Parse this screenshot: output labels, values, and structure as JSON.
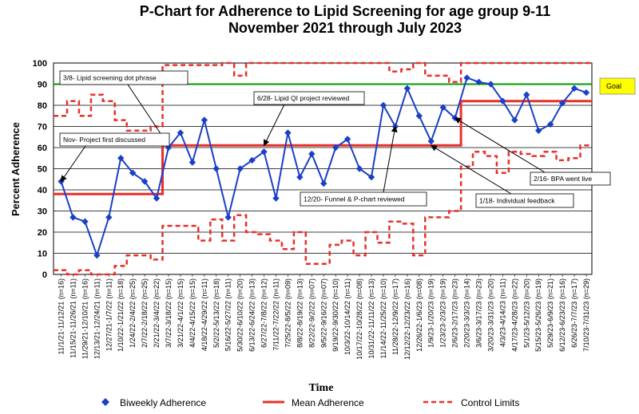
{
  "chart_data": {
    "type": "line",
    "title": "P-Chart for Adherence to Lipid Screening for age group 9-11",
    "subtitle": "November 2021 through July 2023",
    "xlabel": "Time",
    "ylabel": "Percent Adherence",
    "ylim": [
      0,
      100
    ],
    "yticks": [
      0,
      10,
      20,
      30,
      40,
      50,
      60,
      70,
      80,
      90,
      100
    ],
    "categories": [
      "11/1/21-11/12/21 (n=16)",
      "11/15/21-11/26/21 (n=11)",
      "11/29/21-12/10/21 (n=16)",
      "12/13/21-12/24/21 (n=11)",
      "12/27/21-1/7/22 (n=11)",
      "1/10/22-1/21/22 (n=18)",
      "1/24/22-2/4/22 (n=25)",
      "2/7/22-2/18/22 (n=25)",
      "2/21/22-3/4/22 (n=22)",
      "3/7/22-3/18/22 (n=15)",
      "3/21/22-4/1/22 (n=15)",
      "4/4/22-4/15/22 (n=15)",
      "4/18/22-4/29/22 (n=11)",
      "5/2/22-5/13/22 (n=18)",
      "5/16/22-5/27/22 (n=11)",
      "5/30/22-6/10/22 (n=20)",
      "6/13/22-6/24/22 (n=13)",
      "6/27/22-7/8/22 (n=12)",
      "7/11/22-7/22/22 (n=11)",
      "7/25/22-8/5/22 (n=09)",
      "8/8/22-8/19/22 (n=13)",
      "8/22/22-9/2/22 (n=07)",
      "9/5/22-9/16/22 (n=07)",
      "9/19/22-9/30/22 (n=10)",
      "10/3/22-10/14/22 (n=11)",
      "10/17/22-10/28/22 (n=08)",
      "10/31/22-11/11/22 (n=13)",
      "11/14/22-11/25/22 (n=10)",
      "11/28/22-12/9/22 (n=17)",
      "12/12/22-12/23/22 (n=16)",
      "12/26/22-1/6/23 (n=08)",
      "1/9/23-1/20/23 (n=19)",
      "1/23/23-2/3/23 (n=19)",
      "2/6/23-2/17/23 (n=23)",
      "2/20/23-3/3/23 (n=14)",
      "3/6/23-3/17/23 (n=23)",
      "3/20/23-3/31/23 (n=20)",
      "4/3/23-4/14/23 (n=11)",
      "4/17/23-4/28/23 (n=22)",
      "5/1/23-5/12/23 (n=20)",
      "5/15/23-5/26/23 (n=19)",
      "5/29/23-6/9/23 (n=21)",
      "6/12/23-6/23/23 (n=16)",
      "6/26/23-7/7/23 (n=17)",
      "7/10/23-7/31/23 (n=29)"
    ],
    "series": [
      {
        "name": "Biweekly Adherence",
        "style": "blue line with diamond markers",
        "values": [
          44,
          27,
          25,
          9,
          27,
          55,
          48,
          44,
          36,
          60,
          67,
          53,
          73,
          50,
          27,
          50,
          54,
          58,
          36,
          67,
          46,
          57,
          43,
          60,
          64,
          50,
          46,
          80,
          70,
          88,
          75,
          63,
          79,
          74,
          93,
          91,
          90,
          82,
          73,
          85,
          68,
          71,
          81,
          88,
          86
        ]
      },
      {
        "name": "Mean Adherence",
        "style": "solid red step line",
        "values": [
          38,
          38,
          38,
          38,
          38,
          38,
          38,
          38,
          38,
          61,
          61,
          61,
          61,
          61,
          61,
          61,
          61,
          61,
          61,
          61,
          61,
          61,
          61,
          61,
          61,
          61,
          61,
          61,
          61,
          61,
          61,
          61,
          61,
          61,
          82,
          82,
          82,
          82,
          82,
          82,
          82,
          82,
          82,
          82,
          82
        ]
      },
      {
        "name": "Control Limits (upper)",
        "style": "dashed red step line",
        "values": [
          75,
          82,
          75,
          85,
          82,
          73,
          68,
          68,
          70,
          99,
          99,
          99,
          99,
          99,
          100,
          94,
          100,
          100,
          100,
          100,
          100,
          100,
          100,
          100,
          100,
          100,
          100,
          100,
          96,
          97,
          100,
          94,
          94,
          91,
          100,
          100,
          100,
          100,
          100,
          100,
          100,
          100,
          100,
          100,
          100
        ]
      },
      {
        "name": "Control Limits (lower)",
        "style": "dashed red step line",
        "values": [
          2,
          0,
          2,
          0,
          0,
          4,
          9,
          9,
          7,
          23,
          23,
          23,
          16,
          26,
          16,
          28,
          20,
          19,
          16,
          12,
          20,
          5,
          5,
          14,
          16,
          9,
          20,
          15,
          25,
          24,
          9,
          27,
          27,
          30,
          51,
          58,
          56,
          48,
          58,
          57,
          56,
          58,
          54,
          55,
          61
        ]
      },
      {
        "name": "Goal",
        "style": "solid green line",
        "values": [
          90,
          90,
          90,
          90,
          90,
          90,
          90,
          90,
          90,
          90,
          90,
          90,
          90,
          90,
          90,
          90,
          90,
          90,
          90,
          90,
          90,
          90,
          90,
          90,
          90,
          90,
          90,
          90,
          90,
          90,
          90,
          90,
          90,
          90,
          90,
          90,
          90,
          90,
          90,
          90,
          90,
          90,
          90,
          90,
          90
        ]
      }
    ],
    "goal": {
      "label": "Goal",
      "value": 90,
      "color": "#009900",
      "box_color": "#ffff00"
    },
    "annotations": [
      {
        "text": "3/8- Lipid screening dot phrase",
        "point_index": 9
      },
      {
        "text": "6/28- Lipid QI project reviewed",
        "point_index": 17
      },
      {
        "text": "Nov- Project first discussed",
        "point_index": 0
      },
      {
        "text": "12/20- Funnel & P-chart reviewed",
        "point_index": 28
      },
      {
        "text": "1/18- Individual feedback",
        "point_index": 31
      },
      {
        "text": "2/16- BPA went live",
        "point_index": 33
      }
    ],
    "legend": [
      "Biweekly Adherence",
      "Mean Adherence",
      "Control Limits"
    ],
    "legend_position": "bottom",
    "grid": "horizontal",
    "colors": {
      "data": "#1a3fc8",
      "mean": "#e8302a",
      "control": "#e8302a",
      "goal": "#009900"
    }
  }
}
